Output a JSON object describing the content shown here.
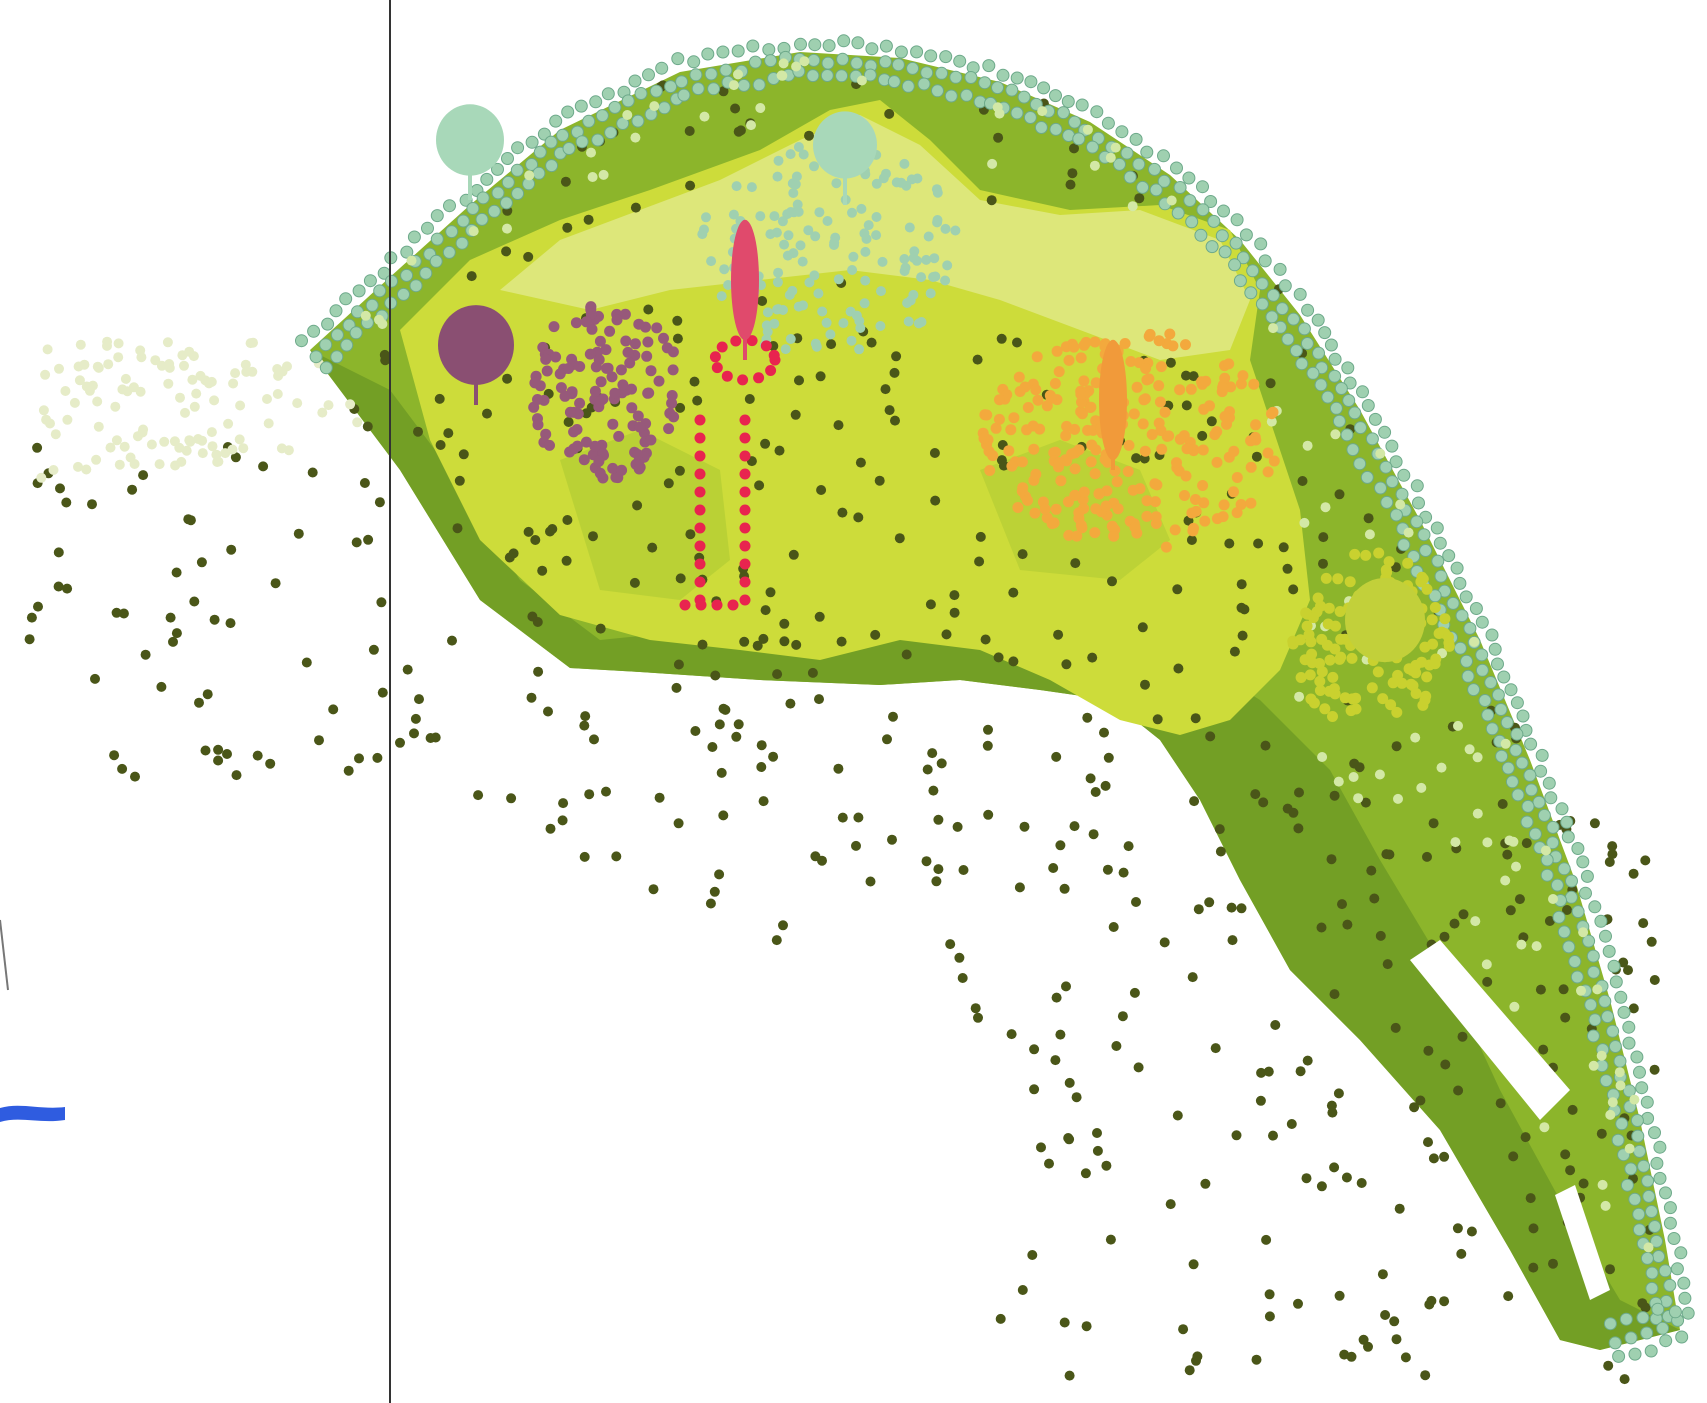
{
  "palette": {
    "background": "#ffffff",
    "zone_outer": "#8cb52b",
    "zone_mid": "#acc831",
    "zone_inner": "#cddc3a",
    "zone_pale": "#dde77a",
    "zone_dark": "#739f25",
    "dot_dark": "#4a5618",
    "dot_teal": "#9fd0b0",
    "dot_teal_edge": "#6da98a",
    "dot_pale_green": "#d3e8a6",
    "dot_cream": "#e6ecc8",
    "dot_purple": "#97597a",
    "dot_red": "#e8244f",
    "dot_orange": "#f3a93d",
    "dot_yellow": "#c9d12f",
    "tree_purple": "#8a4f72",
    "tree_red": "#e04a6c",
    "tree_orange": "#f19a3a",
    "tree_teal": "#a8d8b9",
    "tree_yellow": "#c2d03a",
    "cut_marker": "#2f5ce0",
    "section_line": "#333333"
  },
  "icons": [
    "planting-zone",
    "planting-dot",
    "tree-symbol",
    "section-line",
    "path-strip"
  ],
  "trees": [
    {
      "name": "tree-teal-north-west",
      "color_key": "tree_teal",
      "shape": "round"
    },
    {
      "name": "tree-teal-north",
      "color_key": "tree_teal",
      "shape": "round"
    },
    {
      "name": "tree-purple",
      "color_key": "tree_purple",
      "shape": "round"
    },
    {
      "name": "tree-red-columnar",
      "color_key": "tree_red",
      "shape": "columnar"
    },
    {
      "name": "tree-orange-columnar",
      "color_key": "tree_orange",
      "shape": "columnar"
    },
    {
      "name": "tree-yellow-east",
      "color_key": "tree_yellow",
      "shape": "round"
    }
  ]
}
